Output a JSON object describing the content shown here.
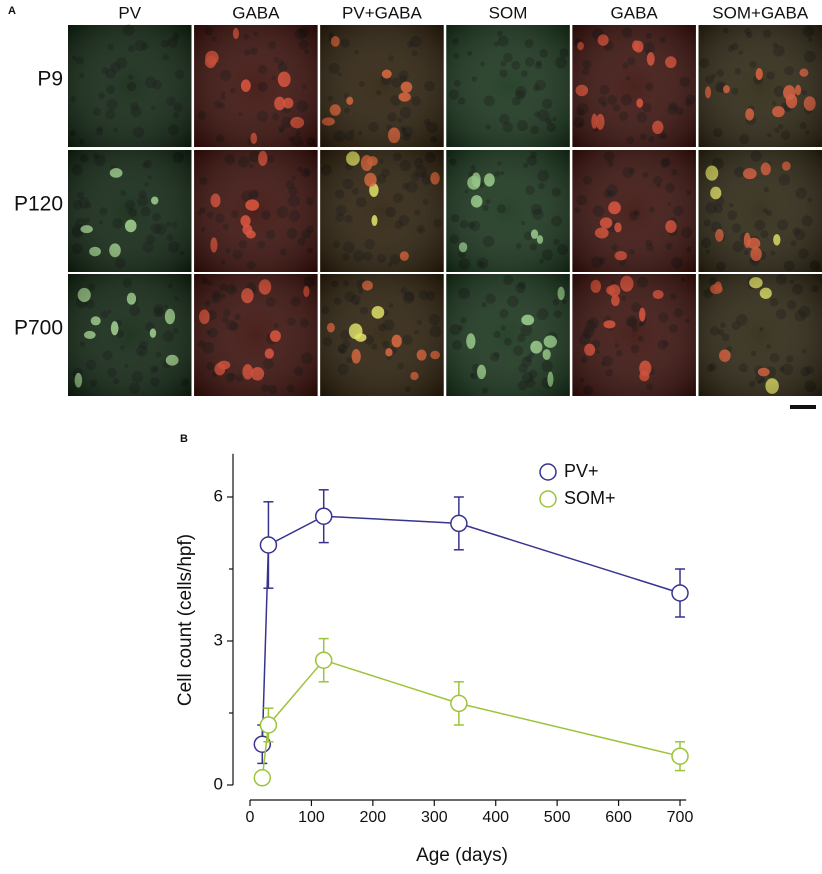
{
  "panel_a": {
    "label": "A",
    "columns": [
      "PV",
      "GABA",
      "PV+GABA",
      "SOM",
      "GABA",
      "SOM+GABA"
    ],
    "rows": [
      "P9",
      "P120",
      "P700"
    ]
  },
  "chart_data": {
    "type": "line",
    "label": "B",
    "x_label": "Age (days)",
    "y_label": "Cell count (cells/hpf)",
    "x": [
      20,
      30,
      120,
      340,
      700
    ],
    "series": [
      {
        "name": "PV+",
        "color": "#37338f",
        "values": [
          0.85,
          5.0,
          5.6,
          5.45,
          4.0
        ],
        "errors": [
          0.4,
          0.9,
          0.55,
          0.55,
          0.5
        ]
      },
      {
        "name": "SOM+",
        "color": "#9cc43a",
        "values": [
          0.15,
          1.25,
          2.6,
          1.7,
          0.6
        ],
        "errors": [
          0,
          0.35,
          0.45,
          0.45,
          0.3
        ]
      }
    ],
    "xlim": [
      0,
      710
    ],
    "xticks": [
      0,
      100,
      200,
      300,
      400,
      500,
      600,
      700
    ],
    "ylim": [
      0,
      6.9
    ],
    "yticks": [
      0,
      3,
      6
    ],
    "yminorticks": [
      1.5,
      4.5
    ],
    "grid": false,
    "legend": "upper right"
  }
}
